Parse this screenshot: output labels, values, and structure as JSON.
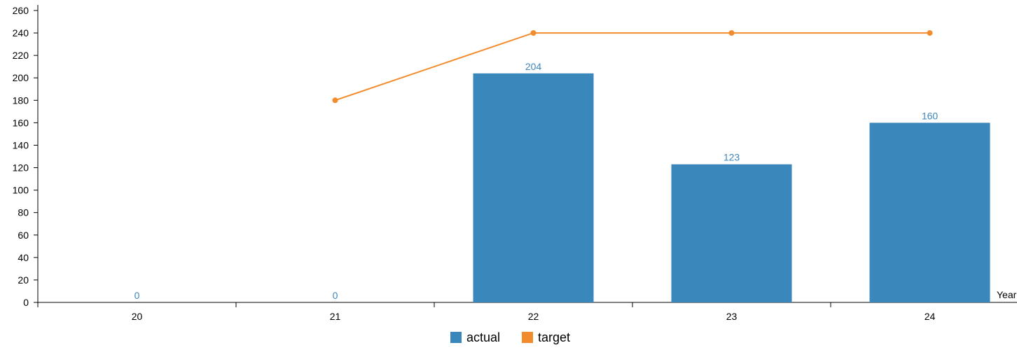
{
  "chart_data": {
    "type": "bar",
    "categories": [
      "20",
      "21",
      "22",
      "23",
      "24"
    ],
    "series": [
      {
        "name": "actual",
        "kind": "bar",
        "color": "#3a87bc",
        "values": [
          0,
          0,
          204,
          123,
          160
        ]
      },
      {
        "name": "target",
        "kind": "line",
        "color": "#f28b2c",
        "values": [
          null,
          180,
          240,
          240,
          240
        ]
      }
    ],
    "xlabel": "Year",
    "ylabel": "",
    "ylim": [
      0,
      260
    ],
    "yticks": [
      0,
      20,
      40,
      60,
      80,
      100,
      120,
      140,
      160,
      180,
      200,
      220,
      240,
      260
    ],
    "data_label_color": "#3e86bb",
    "legend_position": "bottom-center",
    "grid": false
  }
}
